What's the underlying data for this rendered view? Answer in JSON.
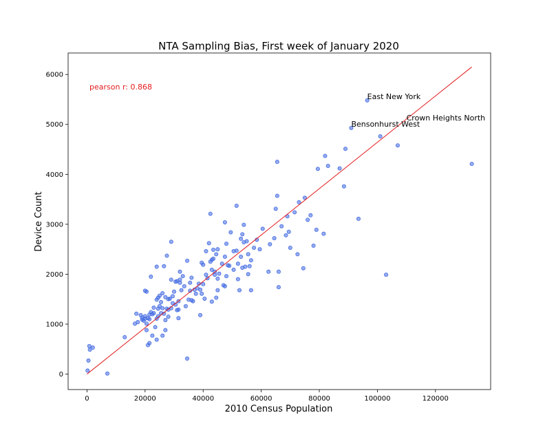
{
  "chart_data": {
    "type": "scatter",
    "title": "NTA Sampling Bias, First week of January 2020",
    "xlabel": "2010 Census Population",
    "ylabel": "Device Count",
    "xlim": [
      -6500,
      139000
    ],
    "ylim": [
      -310,
      6430
    ],
    "xticks": [
      0,
      20000,
      40000,
      60000,
      80000,
      100000,
      120000
    ],
    "yticks": [
      0,
      1000,
      2000,
      3000,
      4000,
      5000,
      6000
    ],
    "grid": false,
    "colors": {
      "points": "#4169e1",
      "trend_line": "#e31a1c",
      "correlation_text": "#e31a1c"
    },
    "correlation_text": "pearson r: 0.868",
    "trend_line": {
      "x": [
        0,
        132500
      ],
      "y": [
        0,
        6150
      ]
    },
    "annotations": [
      {
        "text": "East New York",
        "x": 96500,
        "y": 5480
      },
      {
        "text": "Crown Heights North",
        "x": 110000,
        "y": 5050
      },
      {
        "text": "Bensonhurst West",
        "x": 91000,
        "y": 4930
      }
    ],
    "points": [
      [
        132500,
        4210
      ],
      [
        107000,
        4580
      ],
      [
        103000,
        1990
      ],
      [
        101000,
        4760
      ],
      [
        96500,
        5480
      ],
      [
        93500,
        3110
      ],
      [
        91000,
        4930
      ],
      [
        89000,
        4510
      ],
      [
        88500,
        3760
      ],
      [
        87000,
        4120
      ],
      [
        83000,
        4170
      ],
      [
        82000,
        4370
      ],
      [
        81500,
        2810
      ],
      [
        79500,
        4110
      ],
      [
        79000,
        2890
      ],
      [
        78000,
        2570
      ],
      [
        77000,
        3180
      ],
      [
        76000,
        3090
      ],
      [
        75000,
        3530
      ],
      [
        74500,
        2120
      ],
      [
        73000,
        3440
      ],
      [
        72500,
        2400
      ],
      [
        71500,
        3240
      ],
      [
        70000,
        2530
      ],
      [
        69500,
        2850
      ],
      [
        69000,
        3160
      ],
      [
        68500,
        2780
      ],
      [
        67000,
        2960
      ],
      [
        66000,
        2050
      ],
      [
        66000,
        1740
      ],
      [
        65500,
        4250
      ],
      [
        65500,
        3570
      ],
      [
        65000,
        3310
      ],
      [
        64500,
        2720
      ],
      [
        63000,
        2600
      ],
      [
        62500,
        2050
      ],
      [
        60500,
        2910
      ],
      [
        59500,
        2500
      ],
      [
        58500,
        2690
      ],
      [
        57500,
        2530
      ],
      [
        56500,
        1680
      ],
      [
        56500,
        2280
      ],
      [
        56000,
        2160
      ],
      [
        55500,
        2000
      ],
      [
        55500,
        2400
      ],
      [
        55000,
        2660
      ],
      [
        54500,
        2150
      ],
      [
        54000,
        2640
      ],
      [
        54000,
        2990
      ],
      [
        53500,
        2800
      ],
      [
        53500,
        2130
      ],
      [
        53000,
        2710
      ],
      [
        53000,
        2350
      ],
      [
        52500,
        1680
      ],
      [
        52000,
        2210
      ],
      [
        52000,
        1900
      ],
      [
        51500,
        3370
      ],
      [
        51500,
        2470
      ],
      [
        50500,
        2090
      ],
      [
        50500,
        2460
      ],
      [
        49500,
        2840
      ],
      [
        49000,
        2170
      ],
      [
        48500,
        2180
      ],
      [
        48000,
        1960
      ],
      [
        48000,
        2610
      ],
      [
        47500,
        1760
      ],
      [
        47500,
        2350
      ],
      [
        47500,
        3040
      ],
      [
        47000,
        1780
      ],
      [
        46500,
        2210
      ],
      [
        45500,
        2010
      ],
      [
        45000,
        1910
      ],
      [
        45000,
        2500
      ],
      [
        45000,
        1680
      ],
      [
        44500,
        2400
      ],
      [
        44500,
        1530
      ],
      [
        44000,
        2050
      ],
      [
        44000,
        1990
      ],
      [
        43500,
        2490
      ],
      [
        43500,
        2310
      ],
      [
        43000,
        2090
      ],
      [
        43000,
        1450
      ],
      [
        43000,
        2290
      ],
      [
        42500,
        2250
      ],
      [
        42500,
        3210
      ],
      [
        42000,
        2620
      ],
      [
        41500,
        1920
      ],
      [
        41000,
        1990
      ],
      [
        41000,
        2460
      ],
      [
        40500,
        1510
      ],
      [
        40000,
        2190
      ],
      [
        40000,
        1800
      ],
      [
        39500,
        1610
      ],
      [
        39500,
        2230
      ],
      [
        39000,
        1690
      ],
      [
        39000,
        1180
      ],
      [
        38500,
        1810
      ],
      [
        38000,
        1720
      ],
      [
        37500,
        1610
      ],
      [
        37000,
        1690
      ],
      [
        36500,
        1460
      ],
      [
        36000,
        1930
      ],
      [
        36000,
        1480
      ],
      [
        35500,
        1670
      ],
      [
        35500,
        1830
      ],
      [
        35000,
        1490
      ],
      [
        34500,
        2270
      ],
      [
        34500,
        310
      ],
      [
        34000,
        1360
      ],
      [
        33500,
        1760
      ],
      [
        33000,
        1960
      ],
      [
        32500,
        1680
      ],
      [
        32000,
        2050
      ],
      [
        32000,
        1890
      ],
      [
        32000,
        1830
      ],
      [
        31500,
        1460
      ],
      [
        31500,
        1290
      ],
      [
        31500,
        1120
      ],
      [
        31000,
        1860
      ],
      [
        31000,
        1280
      ],
      [
        30500,
        1390
      ],
      [
        30500,
        1850
      ],
      [
        30000,
        1650
      ],
      [
        29500,
        1420
      ],
      [
        29500,
        1560
      ],
      [
        29000,
        2650
      ],
      [
        29000,
        1890
      ],
      [
        29000,
        1320
      ],
      [
        28500,
        1510
      ],
      [
        28000,
        1500
      ],
      [
        28000,
        1290
      ],
      [
        28000,
        1150
      ],
      [
        27500,
        2370
      ],
      [
        27500,
        1310
      ],
      [
        27000,
        1540
      ],
      [
        27000,
        1080
      ],
      [
        27000,
        880
      ],
      [
        26500,
        2160
      ],
      [
        26500,
        1210
      ],
      [
        26000,
        1320
      ],
      [
        26000,
        1620
      ],
      [
        26000,
        770
      ],
      [
        25500,
        1440
      ],
      [
        25500,
        1220
      ],
      [
        25000,
        1570
      ],
      [
        25000,
        1360
      ],
      [
        24500,
        1530
      ],
      [
        24500,
        1310
      ],
      [
        24500,
        1160
      ],
      [
        24000,
        2150
      ],
      [
        24000,
        1490
      ],
      [
        24000,
        1110
      ],
      [
        24000,
        690
      ],
      [
        23500,
        940
      ],
      [
        23000,
        1330
      ],
      [
        23000,
        1220
      ],
      [
        22500,
        1200
      ],
      [
        22500,
        770
      ],
      [
        22000,
        1950
      ],
      [
        22000,
        1240
      ],
      [
        21500,
        1190
      ],
      [
        21500,
        1100
      ],
      [
        21500,
        620
      ],
      [
        21000,
        1120
      ],
      [
        21000,
        580
      ],
      [
        20500,
        1650
      ],
      [
        20500,
        1010
      ],
      [
        20500,
        880
      ],
      [
        20000,
        1670
      ],
      [
        20000,
        1160
      ],
      [
        20000,
        1110
      ],
      [
        19500,
        1070
      ],
      [
        19000,
        1130
      ],
      [
        19000,
        1090
      ],
      [
        18500,
        1180
      ],
      [
        17500,
        1040
      ],
      [
        17000,
        1210
      ],
      [
        16500,
        1010
      ],
      [
        13000,
        740
      ],
      [
        7000,
        10
      ],
      [
        2000,
        530
      ],
      [
        1000,
        490
      ],
      [
        800,
        560
      ],
      [
        500,
        270
      ],
      [
        200,
        70
      ]
    ]
  }
}
